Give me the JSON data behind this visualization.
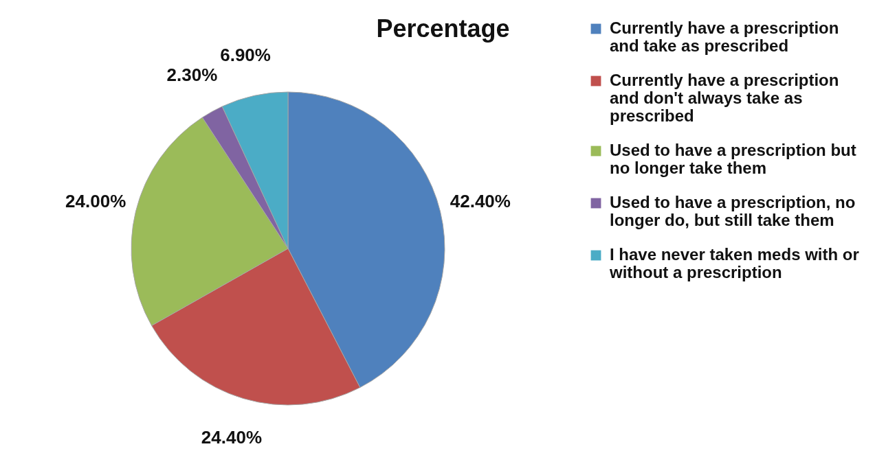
{
  "chart_data": {
    "type": "pie",
    "title": "Percentage",
    "categories": [
      "Currently have a prescription and take as prescribed",
      "Currently have a prescription and don't always take as prescribed",
      "Used to have a prescription but no longer take them",
      "Used to have a prescription, no longer do, but still take them",
      "I have never taken meds with or without a prescription"
    ],
    "values": [
      42.4,
      24.4,
      24.0,
      2.3,
      6.9
    ],
    "value_labels": [
      "42.40%",
      "24.40%",
      "24.00%",
      "2.30%",
      "6.90%"
    ],
    "colors": [
      "#4f81bd",
      "#c0504d",
      "#9bbb59",
      "#8064a2",
      "#4bacc6"
    ],
    "legend": "right"
  }
}
